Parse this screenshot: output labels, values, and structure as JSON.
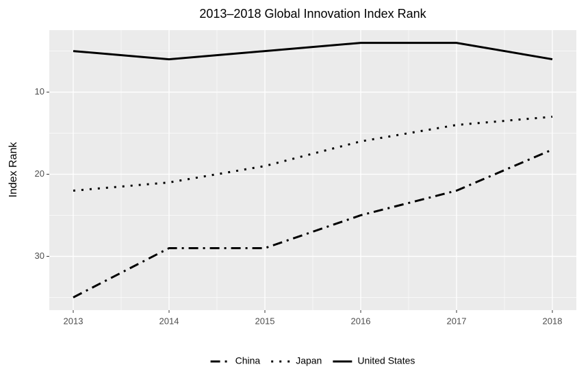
{
  "chart_data": {
    "type": "line",
    "title": "2013–2018 Global Innovation Index Rank",
    "y_label": "Index Rank",
    "x": [
      2013,
      2014,
      2015,
      2016,
      2017,
      2018
    ],
    "xlim": [
      2012.75,
      2018.25
    ],
    "xticks": [
      2013,
      2014,
      2015,
      2016,
      2017,
      2018
    ],
    "minor_xticks": [
      2013.5,
      2014.5,
      2015.5,
      2016.5,
      2017.5
    ],
    "ylim": [
      36.55,
      2.45
    ],
    "yticks": [
      10,
      20,
      30
    ],
    "minor_yticks": [
      5,
      15,
      25,
      35
    ],
    "grid": true,
    "legend": "bottom",
    "series": [
      {
        "name": "China",
        "color": "#000000",
        "linetype": "dotdash",
        "values": [
          35,
          29,
          29,
          25,
          22,
          17
        ]
      },
      {
        "name": "Japan",
        "color": "#000000",
        "linetype": "dotted",
        "values": [
          22,
          21,
          19,
          16,
          14,
          13
        ]
      },
      {
        "name": "United States",
        "color": "#000000",
        "linetype": "solid",
        "values": [
          5,
          6,
          5,
          4,
          4,
          6
        ]
      }
    ]
  }
}
